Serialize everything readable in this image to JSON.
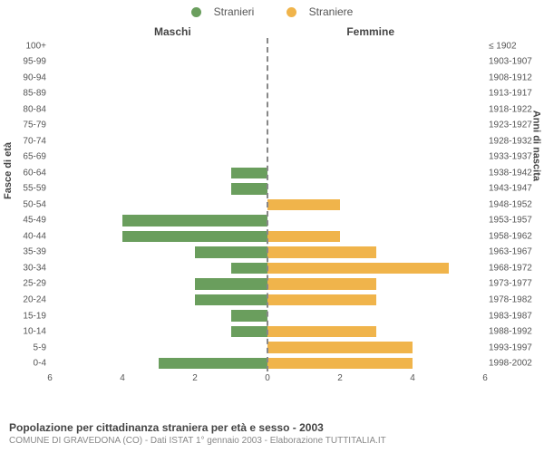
{
  "title": "Popolazione per cittadinanza straniera per età e sesso - 2003",
  "subtitle": "COMUNE DI GRAVEDONA (CO) - Dati ISTAT 1° gennaio 2003 - Elaborazione TUTTITALIA.IT",
  "legend": {
    "male": "Stranieri",
    "female": "Straniere"
  },
  "axis_left_title": "Fasce di età",
  "axis_right_title": "Anni di nascita",
  "column_titles": {
    "male": "Maschi",
    "female": "Femmine"
  },
  "colors": {
    "male": "#6a9e5d",
    "female": "#f0b44b",
    "zero_line": "#888888",
    "tick_text": "#555555",
    "background": "#ffffff"
  },
  "typography": {
    "legend_fontsize": 12,
    "col_title_fontsize": 12,
    "axis_title_fontsize": 11,
    "tick_fontsize": 10,
    "footer_title_fontsize": 12,
    "footer_sub_fontsize": 10
  },
  "chart": {
    "type": "population-pyramid",
    "x_max": 6,
    "x_ticks": [
      6,
      4,
      2,
      0,
      2,
      4,
      6
    ],
    "bar_height_ratio": 0.7,
    "rows": [
      {
        "age": "100+",
        "birth": "≤ 1902",
        "m": 0,
        "f": 0
      },
      {
        "age": "95-99",
        "birth": "1903-1907",
        "m": 0,
        "f": 0
      },
      {
        "age": "90-94",
        "birth": "1908-1912",
        "m": 0,
        "f": 0
      },
      {
        "age": "85-89",
        "birth": "1913-1917",
        "m": 0,
        "f": 0
      },
      {
        "age": "80-84",
        "birth": "1918-1922",
        "m": 0,
        "f": 0
      },
      {
        "age": "75-79",
        "birth": "1923-1927",
        "m": 0,
        "f": 0
      },
      {
        "age": "70-74",
        "birth": "1928-1932",
        "m": 0,
        "f": 0
      },
      {
        "age": "65-69",
        "birth": "1933-1937",
        "m": 0,
        "f": 0
      },
      {
        "age": "60-64",
        "birth": "1938-1942",
        "m": 1,
        "f": 0
      },
      {
        "age": "55-59",
        "birth": "1943-1947",
        "m": 1,
        "f": 0
      },
      {
        "age": "50-54",
        "birth": "1948-1952",
        "m": 0,
        "f": 2
      },
      {
        "age": "45-49",
        "birth": "1953-1957",
        "m": 4,
        "f": 0
      },
      {
        "age": "40-44",
        "birth": "1958-1962",
        "m": 4,
        "f": 2
      },
      {
        "age": "35-39",
        "birth": "1963-1967",
        "m": 2,
        "f": 3
      },
      {
        "age": "30-34",
        "birth": "1968-1972",
        "m": 1,
        "f": 5
      },
      {
        "age": "25-29",
        "birth": "1973-1977",
        "m": 2,
        "f": 3
      },
      {
        "age": "20-24",
        "birth": "1978-1982",
        "m": 2,
        "f": 3
      },
      {
        "age": "15-19",
        "birth": "1983-1987",
        "m": 1,
        "f": 0
      },
      {
        "age": "10-14",
        "birth": "1988-1992",
        "m": 1,
        "f": 3
      },
      {
        "age": "5-9",
        "birth": "1993-1997",
        "m": 0,
        "f": 4
      },
      {
        "age": "0-4",
        "birth": "1998-2002",
        "m": 3,
        "f": 4
      }
    ]
  }
}
